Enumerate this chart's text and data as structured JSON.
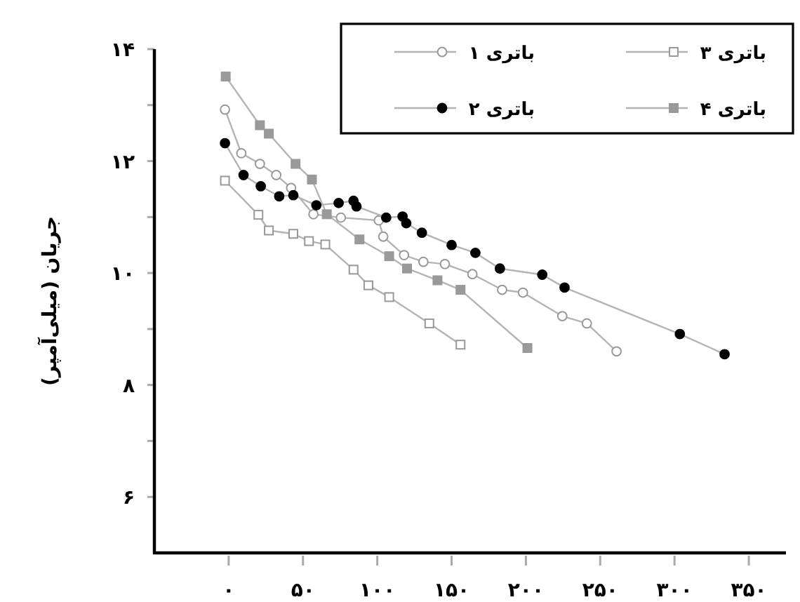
{
  "chart_data": {
    "type": "line",
    "ylabel": "جریان (میلی‌آمپر)",
    "xlim": [
      -50,
      375
    ],
    "ylim": [
      5,
      14
    ],
    "xticks": [
      {
        "value": 0,
        "label": "۰"
      },
      {
        "value": 50,
        "label": "۵۰"
      },
      {
        "value": 100,
        "label": "۱۰۰"
      },
      {
        "value": 150,
        "label": "۱۵۰"
      },
      {
        "value": 200,
        "label": "۲۰۰"
      },
      {
        "value": 250,
        "label": "۲۵۰"
      },
      {
        "value": 300,
        "label": "۳۰۰"
      },
      {
        "value": 350,
        "label": "۳۵۰"
      }
    ],
    "yticks": [
      {
        "value": 6,
        "label": "۶"
      },
      {
        "value": 7,
        "label": null
      },
      {
        "value": 8,
        "label": "۸"
      },
      {
        "value": 9,
        "label": null
      },
      {
        "value": 10,
        "label": "۱۰"
      },
      {
        "value": 11,
        "label": null
      },
      {
        "value": 12,
        "label": "۱۲"
      },
      {
        "value": 13,
        "label": null
      },
      {
        "value": 14,
        "label": "۱۴"
      }
    ],
    "legend": "top right",
    "grid": false,
    "series": [
      {
        "name": "باتری ۱",
        "color": "#ffffff",
        "marker": "circle",
        "x": [
          -2.5,
          8.5,
          21,
          32,
          42,
          57,
          75.5,
          101,
          104,
          118,
          131,
          145.5,
          164,
          184,
          198,
          224.5,
          241,
          261
        ],
        "values": [
          12.92,
          12.14,
          11.95,
          11.75,
          11.52,
          11.05,
          10.99,
          10.94,
          10.65,
          10.32,
          10.2,
          10.16,
          9.98,
          9.7,
          9.65,
          9.23,
          9.1,
          8.6
        ]
      },
      {
        "name": "باتری ۳",
        "color": "#ffffff",
        "marker": "square",
        "x": [
          -2.5,
          20,
          27,
          43.5,
          54,
          65,
          84,
          94,
          108,
          135,
          156
        ],
        "values": [
          11.65,
          11.04,
          10.76,
          10.7,
          10.57,
          10.51,
          10.06,
          9.78,
          9.57,
          9.1,
          8.72
        ]
      },
      {
        "name": "باتری ۲",
        "color": "#000000",
        "marker": "circle",
        "x": [
          -2.5,
          10,
          21.6,
          34,
          43.5,
          59,
          74,
          84,
          86,
          106,
          117,
          119.5,
          130,
          150,
          166,
          182.5,
          211,
          226,
          303.6,
          333.7
        ],
        "values": [
          12.32,
          11.75,
          11.55,
          11.37,
          11.39,
          11.21,
          11.25,
          11.29,
          11.19,
          10.99,
          11.01,
          10.89,
          10.72,
          10.5,
          10.36,
          10.08,
          9.97,
          9.74,
          8.91,
          8.55
        ]
      },
      {
        "name": "باتری ۴",
        "color": "#9a9a9a",
        "marker": "square",
        "x": [
          -2,
          21,
          27,
          45,
          56,
          66,
          88,
          108,
          120,
          140.5,
          156,
          201
        ],
        "values": [
          13.51,
          12.64,
          12.49,
          11.95,
          11.67,
          11.05,
          10.6,
          10.3,
          10.08,
          9.87,
          9.7,
          8.66
        ]
      }
    ]
  }
}
